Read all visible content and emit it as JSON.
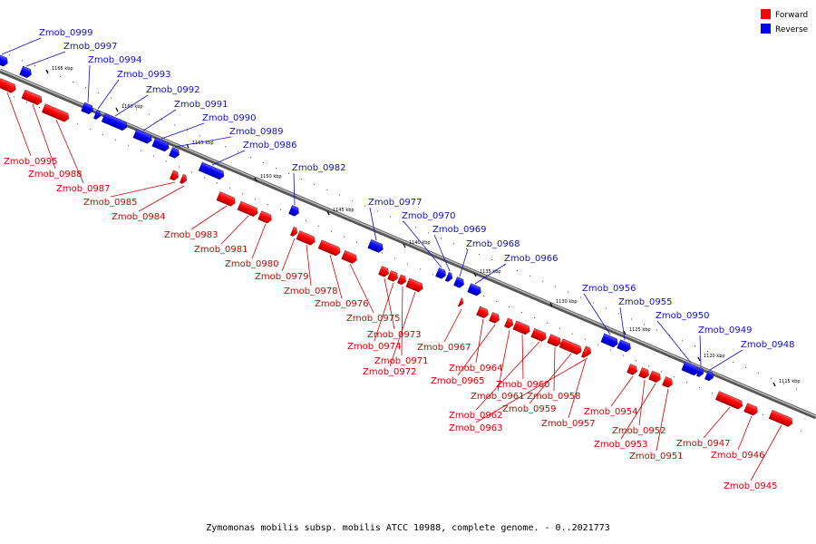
{
  "legend": [
    {
      "label": "Forward",
      "color": "#ff0000"
    },
    {
      "label": "Reverse",
      "color": "#0000ff"
    }
  ],
  "caption": "Zymomonas mobilis subsp. mobilis ATCC 10988, complete genome. - 0..2021773",
  "ticks": [
    "1165 kbp",
    "1160 kbp",
    "1155 kbp",
    "1150 kbp",
    "1145 kbp",
    "1140 kbp",
    "1135 kbp",
    "1130 kbp",
    "1125 kbp",
    "1120 kbp",
    "1115 kbp"
  ],
  "upper_genes": [
    "Zmob_0999",
    "Zmob_0997",
    "Zmob_0994",
    "Zmob_0993",
    "Zmob_0992",
    "Zmob_0991",
    "Zmob_0990",
    "Zmob_0989",
    "Zmob_0986",
    "Zmob_0982",
    "Zmob_0977",
    "Zmob_0970",
    "Zmob_0969",
    "Zmob_0968",
    "Zmob_0966",
    "Zmob_0956",
    "Zmob_0955",
    "Zmob_0950",
    "Zmob_0949",
    "Zmob_0948"
  ],
  "lower_genes": [
    "Zmob_0995",
    "Zmob_0988",
    "Zmob_0987",
    "Zmob_0985",
    "Zmob_0984",
    "Zmob_0983",
    "Zmob_0981",
    "Zmob_0980",
    "Zmob_0979",
    "Zmob_0978",
    "Zmob_0976",
    "Zmob_0975",
    "Zmob_0973",
    "Zmob_0974",
    "Zmob_0971",
    "Zmob_0972",
    "Zmob_0967",
    "Zmob_0964",
    "Zmob_0965",
    "Zmob_0961",
    "Zmob_0960",
    "Zmob_0962",
    "Zmob_0958",
    "Zmob_0959",
    "Zmob_0963",
    "Zmob_0957",
    "Zmob_0954",
    "Zmob_0952",
    "Zmob_0953",
    "Zmob_0951",
    "Zmob_0947",
    "Zmob_0946",
    "Zmob_0945"
  ]
}
